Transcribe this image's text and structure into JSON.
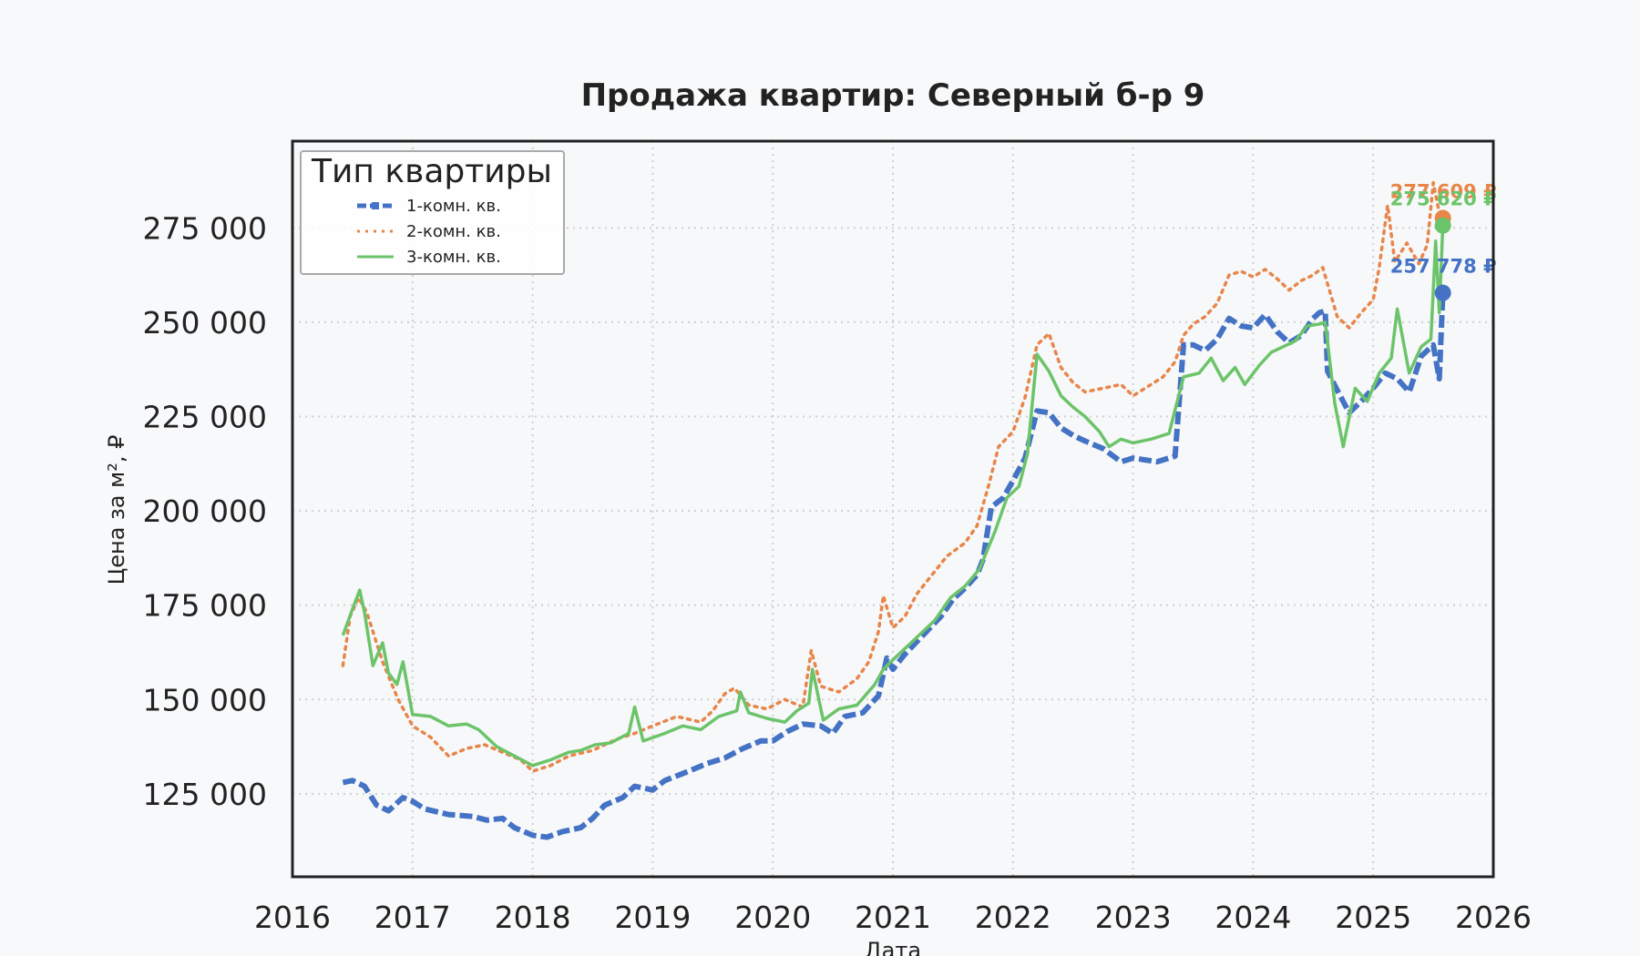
{
  "chart_data": {
    "type": "line",
    "title": "Продажа квартир: Северный б-р 9",
    "xlabel": "Дата",
    "ylabel": "Цена за м², ₽",
    "xlim": [
      2016,
      2026
    ],
    "ylim": [
      103000,
      298000
    ],
    "x_ticks": [
      "2016",
      "2017",
      "2018",
      "2019",
      "2020",
      "2021",
      "2022",
      "2023",
      "2024",
      "2025",
      "2026"
    ],
    "y_ticks": [
      {
        "value": 125000,
        "label": "125 000"
      },
      {
        "value": 150000,
        "label": "150 000"
      },
      {
        "value": 175000,
        "label": "175 000"
      },
      {
        "value": 200000,
        "label": "200 000"
      },
      {
        "value": 225000,
        "label": "225 000"
      },
      {
        "value": 250000,
        "label": "250 000"
      },
      {
        "value": 275000,
        "label": "275 000"
      }
    ],
    "grid": true,
    "legend": {
      "title": "Тип квартиры",
      "position": "top-left"
    },
    "series": [
      {
        "name": "1-комн. кв.",
        "color": "#4472c4",
        "style": "dashed-square",
        "end_label": "257 778 ₽",
        "end_value": 257778,
        "points": [
          [
            2016.42,
            128000
          ],
          [
            2016.5,
            128500
          ],
          [
            2016.6,
            127000
          ],
          [
            2016.7,
            122000
          ],
          [
            2016.8,
            120500
          ],
          [
            2016.92,
            124000
          ],
          [
            2017.0,
            123000
          ],
          [
            2017.1,
            121000
          ],
          [
            2017.3,
            119500
          ],
          [
            2017.5,
            119000
          ],
          [
            2017.62,
            118000
          ],
          [
            2017.75,
            118500
          ],
          [
            2017.85,
            116000
          ],
          [
            2018.0,
            114000
          ],
          [
            2018.12,
            113500
          ],
          [
            2018.25,
            115000
          ],
          [
            2018.4,
            116000
          ],
          [
            2018.5,
            118500
          ],
          [
            2018.6,
            122000
          ],
          [
            2018.75,
            124000
          ],
          [
            2018.85,
            127000
          ],
          [
            2019.0,
            126000
          ],
          [
            2019.1,
            128500
          ],
          [
            2019.3,
            131000
          ],
          [
            2019.45,
            133000
          ],
          [
            2019.6,
            134500
          ],
          [
            2019.75,
            137000
          ],
          [
            2019.9,
            139000
          ],
          [
            2020.0,
            139000
          ],
          [
            2020.12,
            141500
          ],
          [
            2020.25,
            143500
          ],
          [
            2020.4,
            143000
          ],
          [
            2020.5,
            141000
          ],
          [
            2020.6,
            145500
          ],
          [
            2020.75,
            146500
          ],
          [
            2020.88,
            151000
          ],
          [
            2020.95,
            161000
          ],
          [
            2021.0,
            158000
          ],
          [
            2021.1,
            162000
          ],
          [
            2021.25,
            167000
          ],
          [
            2021.4,
            172000
          ],
          [
            2021.5,
            176500
          ],
          [
            2021.6,
            179500
          ],
          [
            2021.7,
            183000
          ],
          [
            2021.75,
            187000
          ],
          [
            2021.82,
            201000
          ],
          [
            2021.92,
            203500
          ],
          [
            2022.0,
            208000
          ],
          [
            2022.1,
            214000
          ],
          [
            2022.2,
            226500
          ],
          [
            2022.3,
            226000
          ],
          [
            2022.4,
            222000
          ],
          [
            2022.5,
            220000
          ],
          [
            2022.6,
            218500
          ],
          [
            2022.75,
            216500
          ],
          [
            2022.9,
            213000
          ],
          [
            2023.0,
            214000
          ],
          [
            2023.1,
            213500
          ],
          [
            2023.2,
            213000
          ],
          [
            2023.35,
            214500
          ],
          [
            2023.42,
            244000
          ],
          [
            2023.5,
            244000
          ],
          [
            2023.6,
            242500
          ],
          [
            2023.7,
            245500
          ],
          [
            2023.8,
            251000
          ],
          [
            2023.9,
            249000
          ],
          [
            2024.0,
            248500
          ],
          [
            2024.1,
            252000
          ],
          [
            2024.2,
            247500
          ],
          [
            2024.3,
            244500
          ],
          [
            2024.4,
            246500
          ],
          [
            2024.5,
            251000
          ],
          [
            2024.55,
            252500
          ],
          [
            2024.6,
            253000
          ],
          [
            2024.62,
            237000
          ],
          [
            2024.7,
            232000
          ],
          [
            2024.8,
            226000
          ],
          [
            2024.9,
            229000
          ],
          [
            2025.0,
            232500
          ],
          [
            2025.1,
            236500
          ],
          [
            2025.2,
            235000
          ],
          [
            2025.3,
            231500
          ],
          [
            2025.4,
            241000
          ],
          [
            2025.5,
            244000
          ],
          [
            2025.55,
            235000
          ],
          [
            2025.58,
            257778
          ]
        ]
      },
      {
        "name": "2-комн. кв.",
        "color": "#e8864a",
        "style": "dotted",
        "end_label": "277 609 ₽",
        "end_value": 277609,
        "points": [
          [
            2016.42,
            159000
          ],
          [
            2016.48,
            172000
          ],
          [
            2016.55,
            177000
          ],
          [
            2016.62,
            173000
          ],
          [
            2016.75,
            160000
          ],
          [
            2016.88,
            150000
          ],
          [
            2017.0,
            143000
          ],
          [
            2017.15,
            140000
          ],
          [
            2017.3,
            135000
          ],
          [
            2017.45,
            137000
          ],
          [
            2017.6,
            138000
          ],
          [
            2017.75,
            136000
          ],
          [
            2017.9,
            134000
          ],
          [
            2018.0,
            131000
          ],
          [
            2018.15,
            132500
          ],
          [
            2018.3,
            135000
          ],
          [
            2018.5,
            136500
          ],
          [
            2018.7,
            139500
          ],
          [
            2018.85,
            141000
          ],
          [
            2019.0,
            143000
          ],
          [
            2019.2,
            145500
          ],
          [
            2019.4,
            144000
          ],
          [
            2019.5,
            147000
          ],
          [
            2019.6,
            151500
          ],
          [
            2019.68,
            153000
          ],
          [
            2019.8,
            148500
          ],
          [
            2019.95,
            147500
          ],
          [
            2020.1,
            150000
          ],
          [
            2020.25,
            148000
          ],
          [
            2020.32,
            163000
          ],
          [
            2020.4,
            153500
          ],
          [
            2020.55,
            152000
          ],
          [
            2020.7,
            155500
          ],
          [
            2020.8,
            160000
          ],
          [
            2020.88,
            168000
          ],
          [
            2020.92,
            177500
          ],
          [
            2021.0,
            169000
          ],
          [
            2021.1,
            172000
          ],
          [
            2021.2,
            178000
          ],
          [
            2021.3,
            182000
          ],
          [
            2021.45,
            188000
          ],
          [
            2021.6,
            191500
          ],
          [
            2021.7,
            196000
          ],
          [
            2021.8,
            207000
          ],
          [
            2021.88,
            217000
          ],
          [
            2022.0,
            221000
          ],
          [
            2022.1,
            230000
          ],
          [
            2022.2,
            244000
          ],
          [
            2022.3,
            247000
          ],
          [
            2022.4,
            238000
          ],
          [
            2022.5,
            234000
          ],
          [
            2022.6,
            231500
          ],
          [
            2022.75,
            232500
          ],
          [
            2022.9,
            233500
          ],
          [
            2023.0,
            230500
          ],
          [
            2023.15,
            233500
          ],
          [
            2023.25,
            235500
          ],
          [
            2023.35,
            239500
          ],
          [
            2023.42,
            246500
          ],
          [
            2023.5,
            249500
          ],
          [
            2023.6,
            251500
          ],
          [
            2023.7,
            255000
          ],
          [
            2023.8,
            262500
          ],
          [
            2023.9,
            263500
          ],
          [
            2024.0,
            262000
          ],
          [
            2024.1,
            264000
          ],
          [
            2024.2,
            261500
          ],
          [
            2024.3,
            258500
          ],
          [
            2024.4,
            261000
          ],
          [
            2024.5,
            262500
          ],
          [
            2024.58,
            264500
          ],
          [
            2024.7,
            251500
          ],
          [
            2024.8,
            248500
          ],
          [
            2024.9,
            252500
          ],
          [
            2025.0,
            256000
          ],
          [
            2025.05,
            264500
          ],
          [
            2025.12,
            281000
          ],
          [
            2025.18,
            266000
          ],
          [
            2025.28,
            271000
          ],
          [
            2025.38,
            265500
          ],
          [
            2025.45,
            270500
          ],
          [
            2025.5,
            287000
          ],
          [
            2025.55,
            279000
          ],
          [
            2025.58,
            277609
          ]
        ]
      },
      {
        "name": "3-комн. кв.",
        "color": "#6cc46a",
        "style": "solid",
        "end_label": "275 620 ₽",
        "end_value": 275620,
        "points": [
          [
            2016.42,
            167000
          ],
          [
            2016.5,
            174000
          ],
          [
            2016.56,
            179000
          ],
          [
            2016.6,
            173000
          ],
          [
            2016.67,
            159000
          ],
          [
            2016.75,
            165000
          ],
          [
            2016.8,
            157000
          ],
          [
            2016.87,
            154000
          ],
          [
            2016.92,
            160000
          ],
          [
            2017.0,
            146000
          ],
          [
            2017.15,
            145500
          ],
          [
            2017.3,
            143000
          ],
          [
            2017.45,
            143500
          ],
          [
            2017.55,
            142000
          ],
          [
            2017.7,
            137500
          ],
          [
            2017.85,
            135000
          ],
          [
            2018.0,
            132500
          ],
          [
            2018.15,
            134000
          ],
          [
            2018.3,
            136000
          ],
          [
            2018.4,
            136500
          ],
          [
            2018.52,
            138000
          ],
          [
            2018.65,
            138500
          ],
          [
            2018.8,
            141000
          ],
          [
            2018.85,
            148000
          ],
          [
            2018.92,
            139000
          ],
          [
            2019.1,
            141000
          ],
          [
            2019.25,
            143000
          ],
          [
            2019.4,
            142000
          ],
          [
            2019.55,
            145500
          ],
          [
            2019.7,
            147000
          ],
          [
            2019.73,
            152000
          ],
          [
            2019.8,
            146500
          ],
          [
            2019.95,
            145000
          ],
          [
            2020.1,
            144000
          ],
          [
            2020.2,
            147000
          ],
          [
            2020.3,
            149000
          ],
          [
            2020.33,
            158000
          ],
          [
            2020.42,
            144500
          ],
          [
            2020.55,
            147500
          ],
          [
            2020.7,
            148500
          ],
          [
            2020.85,
            154000
          ],
          [
            2020.92,
            158000
          ],
          [
            2021.0,
            160500
          ],
          [
            2021.1,
            163500
          ],
          [
            2021.2,
            166500
          ],
          [
            2021.35,
            171000
          ],
          [
            2021.48,
            177000
          ],
          [
            2021.6,
            180000
          ],
          [
            2021.72,
            184500
          ],
          [
            2021.85,
            194500
          ],
          [
            2021.95,
            203500
          ],
          [
            2022.05,
            206500
          ],
          [
            2022.12,
            215000
          ],
          [
            2022.2,
            241500
          ],
          [
            2022.3,
            237000
          ],
          [
            2022.4,
            230500
          ],
          [
            2022.5,
            227500
          ],
          [
            2022.6,
            225000
          ],
          [
            2022.72,
            221000
          ],
          [
            2022.8,
            217000
          ],
          [
            2022.9,
            219000
          ],
          [
            2023.0,
            218000
          ],
          [
            2023.15,
            219000
          ],
          [
            2023.3,
            220500
          ],
          [
            2023.42,
            235500
          ],
          [
            2023.55,
            236500
          ],
          [
            2023.65,
            240500
          ],
          [
            2023.75,
            234500
          ],
          [
            2023.85,
            238000
          ],
          [
            2023.93,
            233500
          ],
          [
            2024.05,
            238500
          ],
          [
            2024.15,
            242000
          ],
          [
            2024.25,
            243500
          ],
          [
            2024.35,
            245000
          ],
          [
            2024.45,
            249000
          ],
          [
            2024.55,
            249500
          ],
          [
            2024.6,
            250000
          ],
          [
            2024.68,
            228500
          ],
          [
            2024.75,
            217000
          ],
          [
            2024.85,
            232500
          ],
          [
            2024.95,
            229000
          ],
          [
            2025.05,
            236500
          ],
          [
            2025.15,
            240500
          ],
          [
            2025.2,
            253500
          ],
          [
            2025.3,
            236500
          ],
          [
            2025.4,
            243500
          ],
          [
            2025.48,
            245500
          ],
          [
            2025.52,
            271500
          ],
          [
            2025.55,
            252500
          ],
          [
            2025.58,
            275620
          ]
        ]
      }
    ]
  }
}
